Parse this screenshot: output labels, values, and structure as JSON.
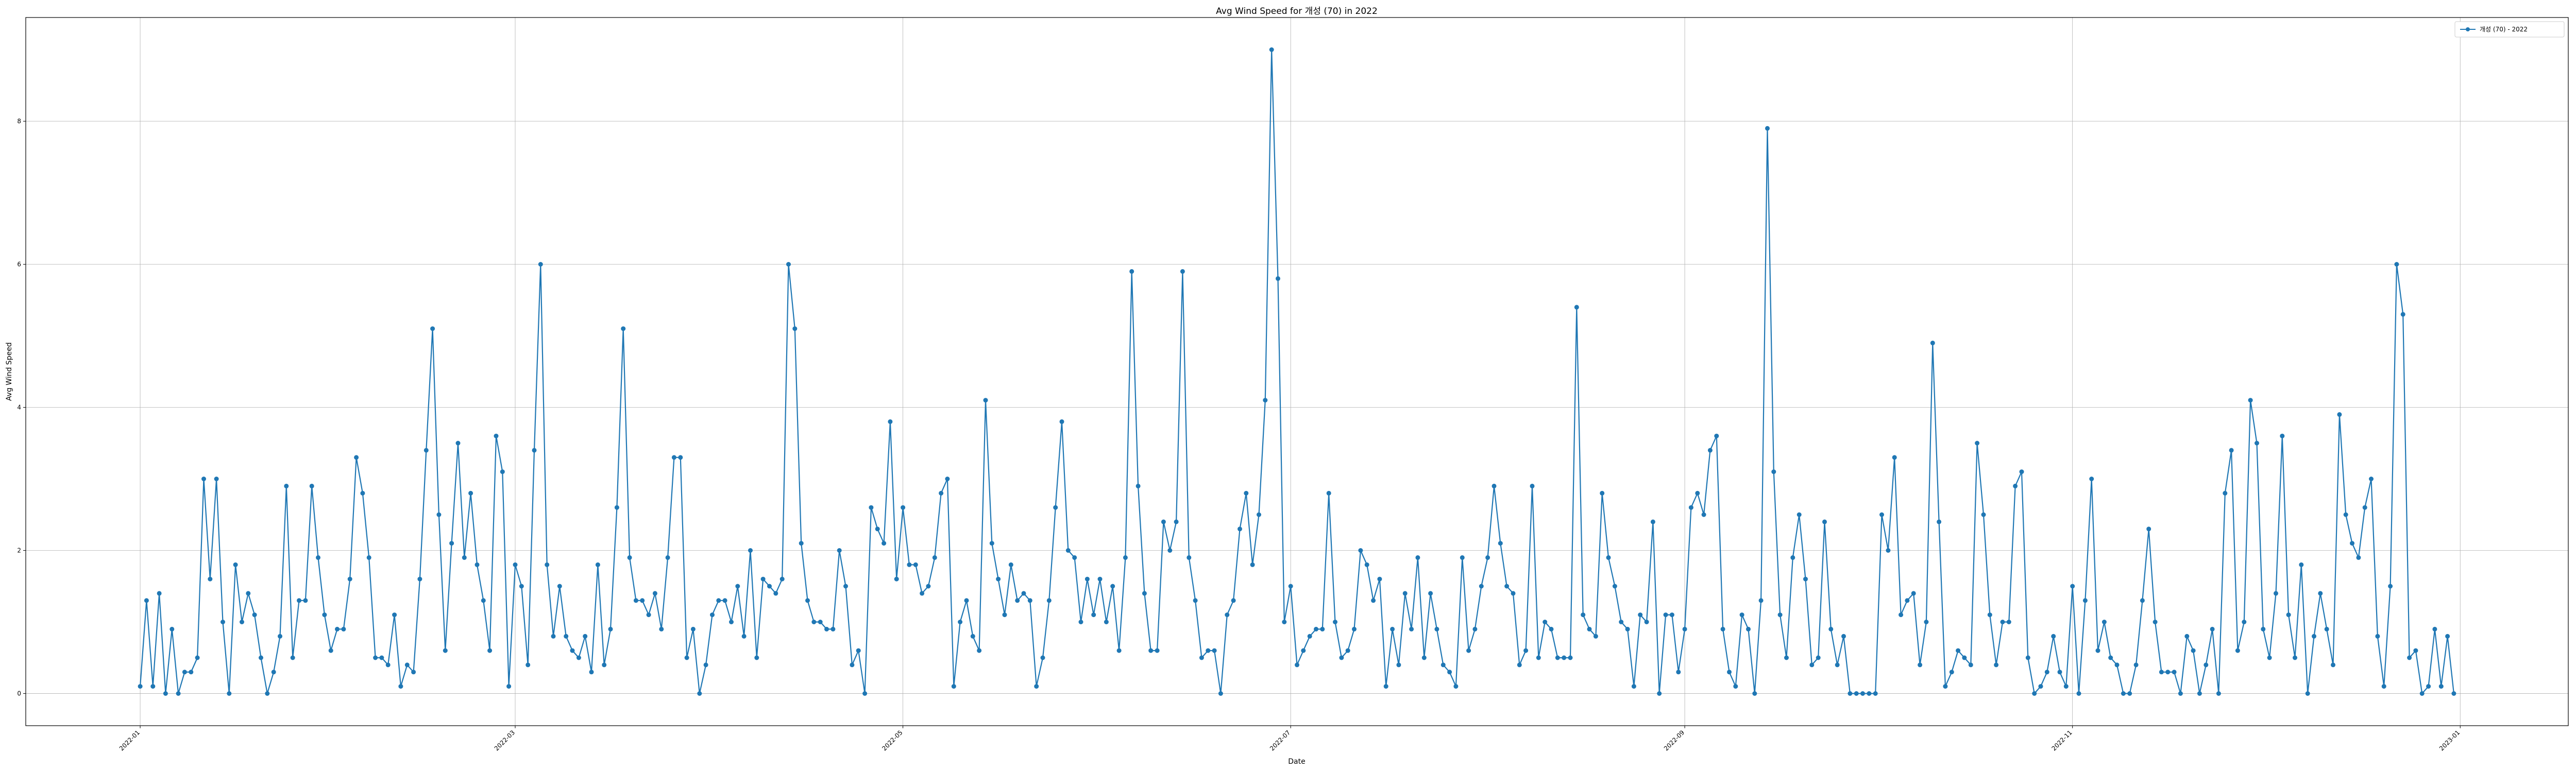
{
  "chart_data": {
    "type": "line",
    "title": "Avg Wind Speed for 개성 (70) in 2022",
    "xlabel": "Date",
    "ylabel": "Avg Wind Speed",
    "x_ticks": [
      "2022-01",
      "2022-03",
      "2022-05",
      "2022-07",
      "2022-09",
      "2022-11",
      "2023-01"
    ],
    "y_ticks": [
      "0",
      "2",
      "4",
      "6",
      "8"
    ],
    "xlim": [
      "2021-12-14",
      "2023-01-18"
    ],
    "ylim": [
      -0.45,
      9.45
    ],
    "grid": true,
    "legend_position": "top-right",
    "colors": {
      "series": "#1f77b4"
    },
    "x_start": "2022-01-01",
    "series": [
      {
        "name": "개성 (70) - 2022",
        "values": [
          0.1,
          1.3,
          0.1,
          1.4,
          0,
          0.9,
          0,
          0.3,
          0.3,
          0.5,
          3.0,
          1.6,
          3.0,
          1.0,
          0,
          1.8,
          1.0,
          1.4,
          1.1,
          0.5,
          0,
          0.3,
          0.8,
          2.9,
          0.5,
          1.3,
          1.3,
          2.9,
          1.9,
          1.1,
          0.6,
          0.9,
          0.9,
          1.6,
          3.3,
          2.8,
          1.9,
          0.5,
          0.5,
          0.4,
          1.1,
          0.1,
          0.4,
          0.3,
          1.6,
          3.4,
          5.1,
          2.5,
          0.6,
          2.1,
          3.5,
          1.9,
          2.8,
          1.8,
          1.3,
          0.6,
          3.6,
          3.1,
          0.1,
          1.8,
          1.5,
          0.4,
          3.4,
          6.0,
          1.8,
          0.8,
          1.5,
          0.8,
          0.6,
          0.5,
          0.8,
          0.3,
          1.8,
          0.4,
          0.9,
          2.6,
          5.1,
          1.9,
          1.3,
          1.3,
          1.1,
          1.4,
          0.9,
          1.9,
          3.3,
          3.3,
          0.5,
          0.9,
          0,
          0.4,
          1.1,
          1.3,
          1.3,
          1.0,
          1.5,
          0.8,
          2.0,
          0.5,
          1.6,
          1.5,
          1.4,
          1.6,
          6.0,
          5.1,
          2.1,
          1.3,
          1.0,
          1.0,
          0.9,
          0.9,
          2.0,
          1.5,
          0.4,
          0.6,
          0,
          2.6,
          2.3,
          2.1,
          3.8,
          1.6,
          2.6,
          1.8,
          1.8,
          1.4,
          1.5,
          1.9,
          2.8,
          3.0,
          0.1,
          1.0,
          1.3,
          0.8,
          0.6,
          4.1,
          2.1,
          1.6,
          1.1,
          1.8,
          1.3,
          1.4,
          1.3,
          0.1,
          0.5,
          1.3,
          2.6,
          3.8,
          2.0,
          1.9,
          1.0,
          1.6,
          1.1,
          1.6,
          1.0,
          1.5,
          0.6,
          1.9,
          5.9,
          2.9,
          1.4,
          0.6,
          0.6,
          2.4,
          2.0,
          2.4,
          5.9,
          1.9,
          1.3,
          0.5,
          0.6,
          0.6,
          0,
          1.1,
          1.3,
          2.3,
          2.8,
          1.8,
          2.5,
          4.1,
          9.0,
          5.8,
          1.0,
          1.5,
          0.4,
          0.6,
          0.8,
          0.9,
          0.9,
          2.8,
          1.0,
          0.5,
          0.6,
          0.9,
          2.0,
          1.8,
          1.3,
          1.6,
          0.1,
          0.9,
          0.4,
          1.4,
          0.9,
          1.9,
          0.5,
          1.4,
          0.9,
          0.4,
          0.3,
          0.1,
          1.9,
          0.6,
          0.9,
          1.5,
          1.9,
          2.9,
          2.1,
          1.5,
          1.4,
          0.4,
          0.6,
          2.9,
          0.5,
          1.0,
          0.9,
          0.5,
          0.5,
          0.5,
          5.4,
          1.1,
          0.9,
          0.8,
          2.8,
          1.9,
          1.5,
          1.0,
          0.9,
          0.1,
          1.1,
          1.0,
          2.4,
          0,
          1.1,
          1.1,
          0.3,
          0.9,
          2.6,
          2.8,
          2.5,
          3.4,
          3.6,
          0.9,
          0.3,
          0.1,
          1.1,
          0.9,
          0,
          1.3,
          7.9,
          3.1,
          1.1,
          0.5,
          1.9,
          2.5,
          1.6,
          0.4,
          0.5,
          2.4,
          0.9,
          0.4,
          0.8,
          0,
          0,
          0,
          0,
          0,
          2.5,
          2.0,
          3.3,
          1.1,
          1.3,
          1.4,
          0.4,
          1.0,
          4.9,
          2.4,
          0.1,
          0.3,
          0.6,
          0.5,
          0.4,
          3.5,
          2.5,
          1.1,
          0.4,
          1.0,
          1.0,
          2.9,
          3.1,
          0.5,
          0,
          0.1,
          0.3,
          0.8,
          0.3,
          0.1,
          1.5,
          0,
          1.3,
          3.0,
          0.6,
          1.0,
          0.5,
          0.4,
          0,
          0,
          0.4,
          1.3,
          2.3,
          1.0,
          0.3,
          0.3,
          0.3,
          0,
          0.8,
          0.6,
          0,
          0.4,
          0.9,
          0,
          2.8,
          3.4,
          0.6,
          1.0,
          4.1,
          3.5,
          0.9,
          0.5,
          1.4,
          3.6,
          1.1,
          0.5,
          1.8,
          0,
          0.8,
          1.4,
          0.9,
          0.4,
          3.9,
          2.5,
          2.1,
          1.9,
          2.6,
          3.0,
          0.8,
          0.1,
          1.5,
          6.0,
          5.3,
          0.5,
          0.6,
          0,
          0.1,
          0.9,
          0.1,
          0.8,
          0
        ]
      }
    ]
  }
}
